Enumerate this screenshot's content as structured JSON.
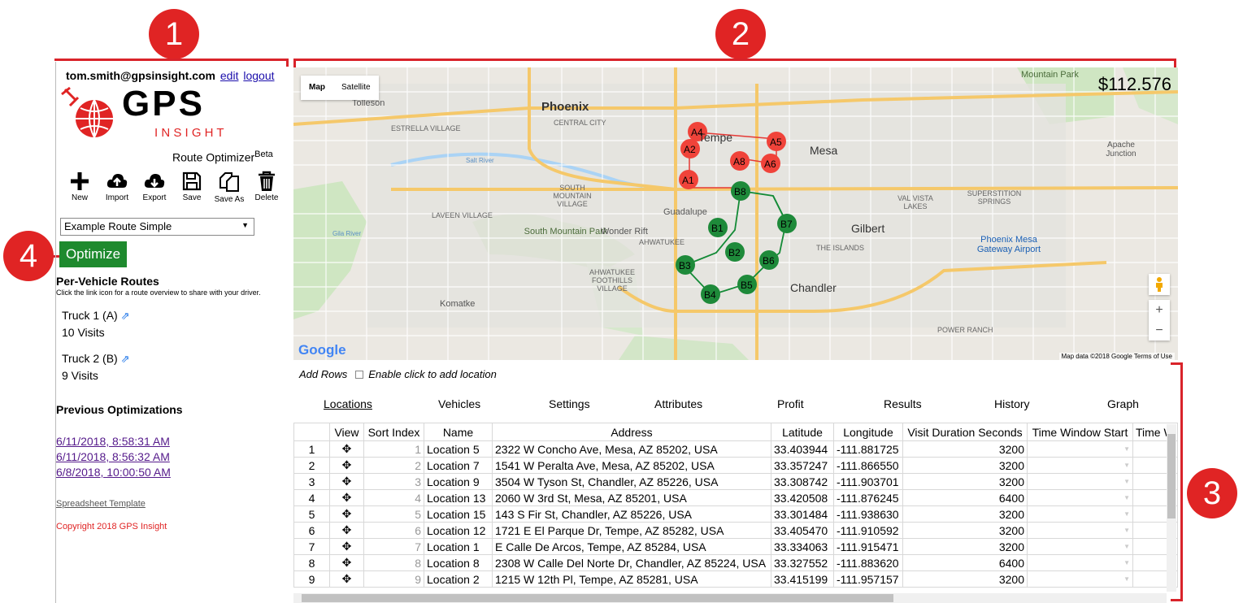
{
  "annotations": {
    "panel_1": "1",
    "panel_2": "2",
    "panel_3": "3",
    "panel_4": "4"
  },
  "user": {
    "email": "tom.smith@gpsinsight.com",
    "edit_label": "edit",
    "logout_label": "logout"
  },
  "logo": {
    "text_top": "GPS",
    "text_bottom": "I N S I G H T",
    "brand_color": "#e02424"
  },
  "product": {
    "name": "Route Optimizer",
    "badge": "Beta"
  },
  "toolbar": [
    {
      "label": "New",
      "icon": "plus-icon"
    },
    {
      "label": "Import",
      "icon": "cloud-upload-icon"
    },
    {
      "label": "Export",
      "icon": "cloud-download-icon"
    },
    {
      "label": "Save",
      "icon": "floppy-disk-icon"
    },
    {
      "label": "Save As",
      "icon": "copy-icon"
    },
    {
      "label": "Delete",
      "icon": "trash-icon"
    }
  ],
  "route_select": {
    "value": "Example Route Simple"
  },
  "optimize_label": "Optimize",
  "per_vehicle": {
    "title": "Per-Vehicle Routes",
    "hint": "Click the link icon for a route overview to share with your driver.",
    "trucks": [
      {
        "name": "Truck 1 (A)",
        "visits": "10 Visits",
        "color": "#f0433a"
      },
      {
        "name": "Truck 2 (B)",
        "visits": "9 Visits",
        "color": "#138a36"
      }
    ]
  },
  "previous": {
    "title": "Previous Optimizations",
    "items": [
      "6/11/2018, 8:58:31 AM",
      "6/11/2018, 8:56:32 AM",
      "6/8/2018, 10:00:50 AM"
    ]
  },
  "spreadsheet_template": "Spreadsheet Template",
  "copyright": "Copyright 2018 GPS Insight",
  "map": {
    "type_buttons": [
      "Map",
      "Satellite"
    ],
    "cost": "$112.576",
    "google": "Google",
    "attribution": "Map data ©2018 Google   Terms of Use",
    "place_labels": [
      "Phoenix",
      "Tolleson",
      "ESTRELLA VILLAGE",
      "CENTRAL CITY",
      "Tempe",
      "Mesa",
      "LAVEEN VILLAGE",
      "SOUTH MOUNTAIN VILLAGE",
      "South Mountain Park",
      "Wonder Rift",
      "AHWATUKEE",
      "AHWATUKEE FOOTHILLS VILLAGE",
      "Guadalupe",
      "Gilbert",
      "Chandler",
      "THE ISLANDS",
      "Komatke",
      "Apache Junction",
      "SUPERSTITION SPRINGS",
      "VAL VISTA LAKES",
      "Phoenix Mesa Gateway Airport",
      "POWER RANCH",
      "Mountain Park",
      "Salt River",
      "Gila River"
    ],
    "markers_a": [
      "A1",
      "A2",
      "A4",
      "A5",
      "A6",
      "A8"
    ],
    "markers_b": [
      "B1",
      "B2",
      "B3",
      "B4",
      "B5",
      "B6",
      "B7",
      "B8"
    ]
  },
  "table": {
    "add_rows": "Add Rows",
    "enable_click": "Enable click to add location",
    "tabs": [
      "Locations",
      "Vehicles",
      "Settings",
      "Attributes",
      "Profit",
      "Results",
      "History",
      "Graph"
    ],
    "columns": [
      "",
      "View",
      "Sort Index",
      "Name",
      "Address",
      "Latitude",
      "Longitude",
      "Visit Duration Seconds",
      "Time Window Start",
      "Time W"
    ],
    "rows": [
      {
        "n": "1",
        "idx": "1",
        "name": "Location 5",
        "address": "2322 W Concho Ave, Mesa, AZ 85202, USA",
        "lat": "33.403944",
        "lon": "-111.881725",
        "dur": "3200"
      },
      {
        "n": "2",
        "idx": "2",
        "name": "Location 7",
        "address": "1541 W Peralta Ave, Mesa, AZ 85202, USA",
        "lat": "33.357247",
        "lon": "-111.866550",
        "dur": "3200"
      },
      {
        "n": "3",
        "idx": "3",
        "name": "Location 9",
        "address": "3504 W Tyson St, Chandler, AZ 85226, USA",
        "lat": "33.308742",
        "lon": "-111.903701",
        "dur": "3200"
      },
      {
        "n": "4",
        "idx": "4",
        "name": "Location 13",
        "address": "2060 W 3rd St, Mesa, AZ 85201, USA",
        "lat": "33.420508",
        "lon": "-111.876245",
        "dur": "6400"
      },
      {
        "n": "5",
        "idx": "5",
        "name": "Location 15",
        "address": "143 S Fir St, Chandler, AZ 85226, USA",
        "lat": "33.301484",
        "lon": "-111.938630",
        "dur": "3200"
      },
      {
        "n": "6",
        "idx": "6",
        "name": "Location 12",
        "address": "1721 E El Parque Dr, Tempe, AZ 85282, USA",
        "lat": "33.405470",
        "lon": "-111.910592",
        "dur": "3200"
      },
      {
        "n": "7",
        "idx": "7",
        "name": "Location 1",
        "address": "E Calle De Arcos, Tempe, AZ 85284, USA",
        "lat": "33.334063",
        "lon": "-111.915471",
        "dur": "3200"
      },
      {
        "n": "8",
        "idx": "8",
        "name": "Location 8",
        "address": "2308 W Calle Del Norte Dr, Chandler, AZ 85224, USA",
        "lat": "33.327552",
        "lon": "-111.883620",
        "dur": "6400"
      },
      {
        "n": "9",
        "idx": "9",
        "name": "Location 2",
        "address": "1215 W 12th Pl, Tempe, AZ 85281, USA",
        "lat": "33.415199",
        "lon": "-111.957157",
        "dur": "3200"
      }
    ]
  }
}
